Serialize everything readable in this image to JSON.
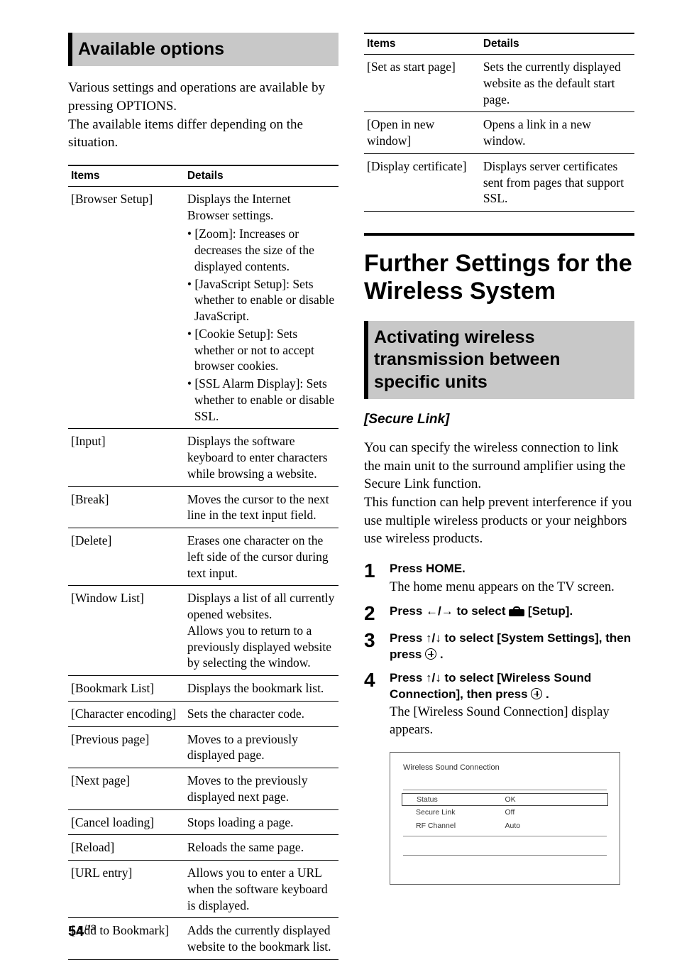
{
  "left": {
    "heading": "Available options",
    "intro": "Various settings and operations are available by pressing OPTIONS.\nThe available items differ depending on the situation.",
    "table": {
      "head_items": "Items",
      "head_details": "Details",
      "rows": [
        {
          "item": "[Browser Setup]",
          "detail": "Displays the Internet Browser settings.",
          "subitems": [
            "[Zoom]: Increases or decreases the size of the displayed contents.",
            "[JavaScript Setup]: Sets whether to enable or disable JavaScript.",
            "[Cookie Setup]: Sets whether or not to accept browser cookies.",
            "[SSL Alarm Display]: Sets whether to enable or disable SSL."
          ]
        },
        {
          "item": "[Input]",
          "detail": "Displays the software keyboard to enter characters while browsing a website."
        },
        {
          "item": "[Break]",
          "detail": "Moves the cursor to the next line in the text input field."
        },
        {
          "item": "[Delete]",
          "detail": "Erases one character on the left side of the cursor during text input."
        },
        {
          "item": "[Window List]",
          "detail": "Displays a list of all currently opened websites.\nAllows you to return to a previously displayed website by selecting the window."
        },
        {
          "item": "[Bookmark List]",
          "detail": "Displays the bookmark list."
        },
        {
          "item": "[Character encoding]",
          "detail": "Sets the character code."
        },
        {
          "item": "[Previous page]",
          "detail": "Moves to a previously displayed page."
        },
        {
          "item": "[Next page]",
          "detail": "Moves to the previously displayed next page."
        },
        {
          "item": "[Cancel loading]",
          "detail": "Stops loading a page."
        },
        {
          "item": "[Reload]",
          "detail": "Reloads the same page."
        },
        {
          "item": "[URL entry]",
          "detail": "Allows you to enter a URL when the software keyboard is displayed."
        },
        {
          "item": "[Add to Bookmark]",
          "detail": "Adds the currently displayed website to the bookmark list."
        }
      ]
    }
  },
  "right": {
    "table": {
      "head_items": "Items",
      "head_details": "Details",
      "rows": [
        {
          "item": "[Set as start page]",
          "detail": "Sets the currently displayed website as the default start page."
        },
        {
          "item": "[Open in new window]",
          "detail": "Opens a link in a new window."
        },
        {
          "item": "[Display certificate]",
          "detail": "Displays server certificates sent from pages that support SSL."
        }
      ]
    },
    "big_heading": "Further Settings for the Wireless System",
    "sub_heading": "Activating wireless transmission between specific units",
    "secure_link_label": "[Secure Link]",
    "body": "You can specify the wireless connection to link the main unit to the surround amplifier using the Secure Link function.\nThis function can help prevent interference if you use multiple wireless products or your neighbors use wireless products.",
    "steps": {
      "s1_title": "Press HOME.",
      "s1_desc": "The home menu appears on the TV screen.",
      "s2_title_a": "Press ",
      "s2_arrows": "←/→",
      "s2_title_b": " to select ",
      "s2_title_c": " [Setup].",
      "s3_title_a": "Press ",
      "s3_arrows": "↑/↓",
      "s3_title_b": " to select [System Settings], then press ",
      "s3_title_c": " .",
      "s4_title_a": "Press ",
      "s4_arrows": "↑/↓",
      "s4_title_b": " to select [Wireless Sound Connection], then press ",
      "s4_title_c": " .",
      "s4_desc": "The [Wireless Sound Connection] display appears."
    },
    "screenshot": {
      "title": "Wireless Sound Connection",
      "rows": [
        {
          "k": "Status",
          "v": "OK",
          "boxed": true
        },
        {
          "k": "Secure Link",
          "v": "Off",
          "boxed": false
        },
        {
          "k": "RF Channel",
          "v": "Auto",
          "boxed": false
        }
      ]
    }
  },
  "page": {
    "num": "54",
    "region": "US"
  }
}
